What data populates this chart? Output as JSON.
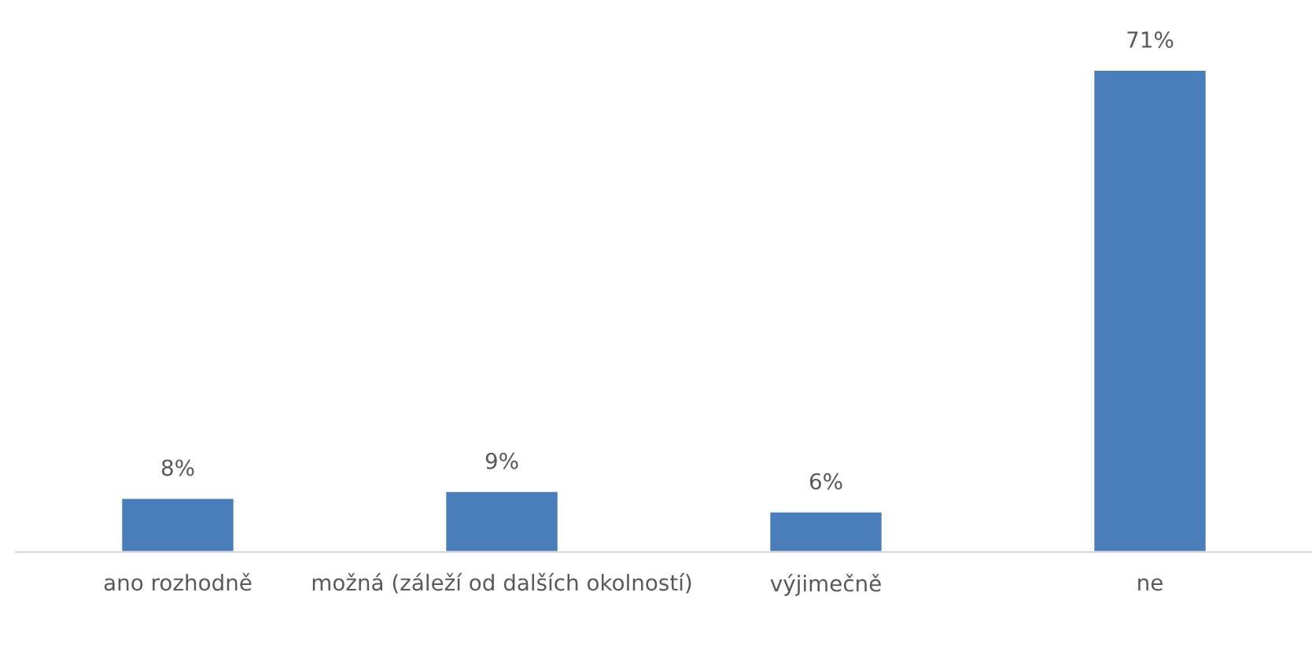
{
  "chart_data": {
    "type": "bar",
    "categories": [
      "ano rozhodně",
      "možná (záleží od dalších okolností)",
      "výjimečně",
      "ne"
    ],
    "values": [
      8,
      9,
      6,
      71
    ],
    "value_labels": [
      "8%",
      "9%",
      "6%",
      "71%"
    ],
    "color": "#4a7ebb",
    "grid": false,
    "legend": false
  }
}
